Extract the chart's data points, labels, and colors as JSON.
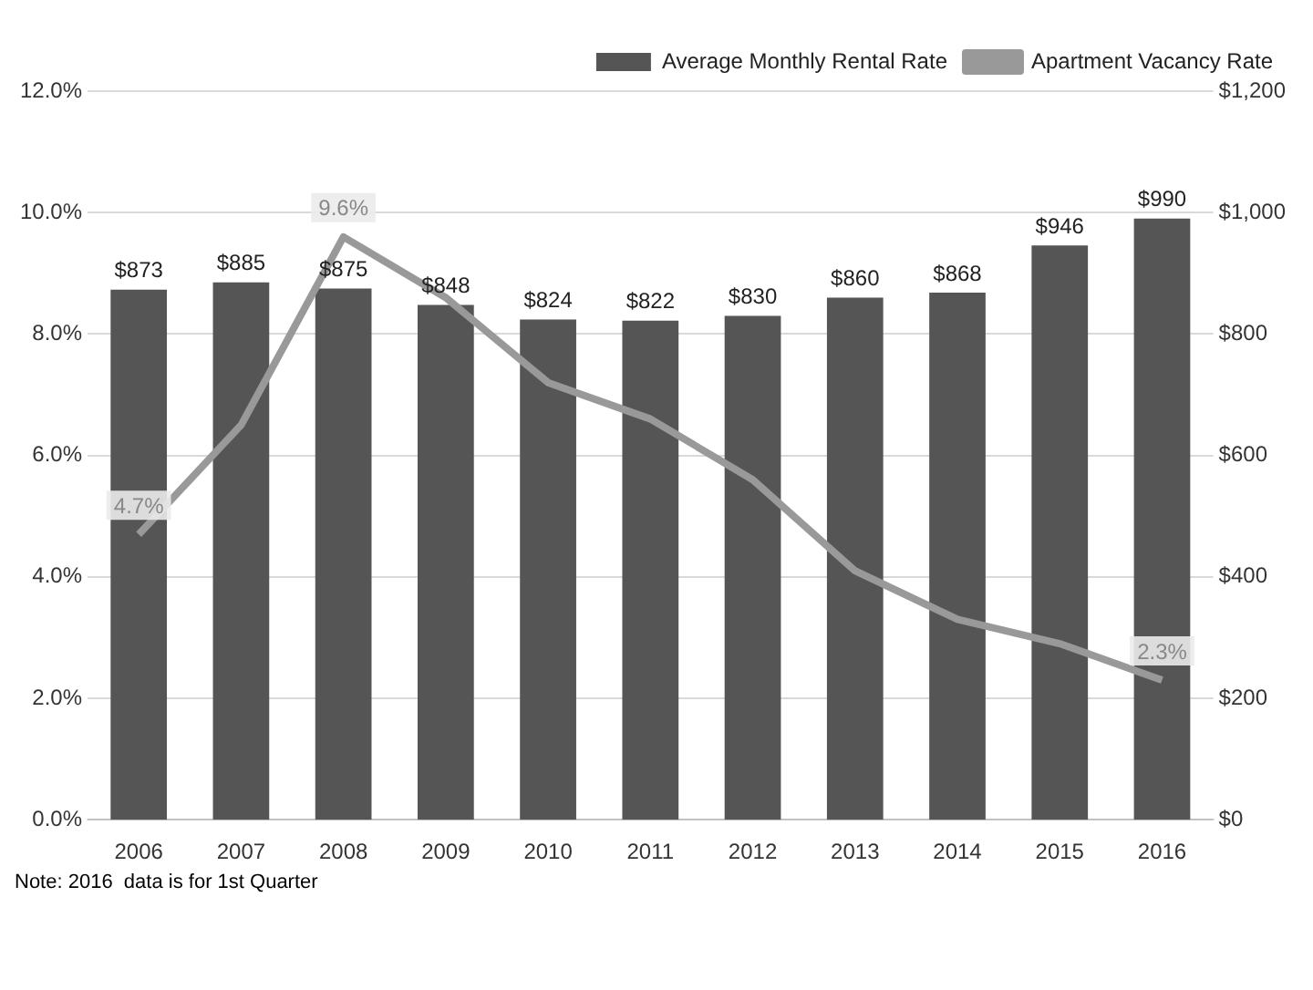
{
  "chart_data": {
    "type": "bar",
    "categories": [
      "2006",
      "2007",
      "2008",
      "2009",
      "2010",
      "2011",
      "2012",
      "2013",
      "2014",
      "2015",
      "2016"
    ],
    "series": [
      {
        "name": "Average Monthly Rental Rate",
        "axis": "y2",
        "color": "#555555",
        "values": [
          873,
          885,
          875,
          848,
          824,
          822,
          830,
          860,
          868,
          946,
          990
        ],
        "value_labels": [
          "$873",
          "$885",
          "$875",
          "$848",
          "$824",
          "$822",
          "$830",
          "$860",
          "$868",
          "$946",
          "$990"
        ]
      },
      {
        "name": "Apartment Vacancy Rate",
        "type": "line",
        "axis": "y",
        "color": "#999999",
        "values": [
          4.7,
          6.5,
          9.6,
          8.6,
          7.2,
          6.6,
          5.6,
          4.1,
          3.3,
          2.9,
          2.3
        ],
        "value_labels": [
          "4.7%",
          null,
          "9.6%",
          null,
          null,
          null,
          null,
          null,
          null,
          null,
          "2.3%"
        ]
      }
    ],
    "ylim": [
      0,
      12
    ],
    "yticks": [
      {
        "value": 0,
        "label": "0.0%"
      },
      {
        "value": 2,
        "label": "2.0%"
      },
      {
        "value": 4,
        "label": "4.0%"
      },
      {
        "value": 6,
        "label": "6.0%"
      },
      {
        "value": 8,
        "label": "8.0%"
      },
      {
        "value": 10,
        "label": "10.0%"
      },
      {
        "value": 12,
        "label": "12.0%"
      }
    ],
    "y2lim": [
      0,
      1200
    ],
    "y2ticks": [
      {
        "value": 0,
        "label": "$0"
      },
      {
        "value": 200,
        "label": "$200"
      },
      {
        "value": 400,
        "label": "$400"
      },
      {
        "value": 600,
        "label": "$600"
      },
      {
        "value": 800,
        "label": "$800"
      },
      {
        "value": 1000,
        "label": "$1,000"
      },
      {
        "value": 1200,
        "label": "$1,200"
      }
    ],
    "grid": "y",
    "legend": "top right",
    "marker": "none",
    "annotations": [
      "Note: 2016  data is for 1st Quarter"
    ]
  }
}
